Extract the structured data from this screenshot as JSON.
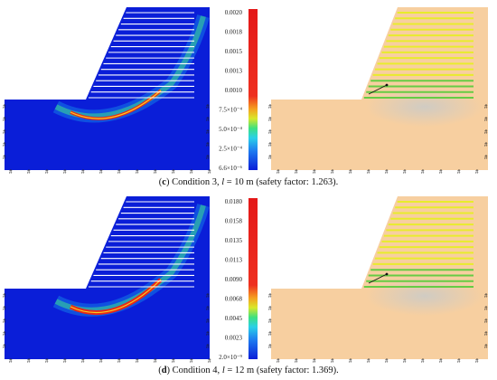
{
  "figure": {
    "panels": [
      {
        "id": "c",
        "bolt_count": 16,
        "colorbar": {
          "labels": [
            "0.0020",
            "0.0018",
            "0.0015",
            "0.0013",
            "0.0010",
            "7.5×10⁻⁴",
            "5.0×10⁻⁴",
            "2.5×10⁻⁴",
            "6.6×10⁻⁶"
          ]
        },
        "caption": {
          "letter": "c",
          "pre": " Condition 3, ",
          "var": "l",
          "post": " = 10 m (safety factor: 1.263)."
        }
      },
      {
        "id": "d",
        "bolt_count": 16,
        "colorbar": {
          "labels": [
            "0.0180",
            "0.0158",
            "0.0135",
            "0.0113",
            "0.0090",
            "0.0068",
            "0.0045",
            "0.0023",
            "2.0×10⁻⁹"
          ]
        },
        "caption": {
          "letter": "d",
          "pre": " Condition 4, ",
          "var": "l",
          "post": " = 12 m (safety factor: 1.369)."
        }
      }
    ],
    "colors": {
      "model_bg": "#0a1ed8",
      "slope_right": "#f7cfa0",
      "bolt_yellow": "#e8ec2c",
      "boundary_green": "#35b535"
    }
  }
}
